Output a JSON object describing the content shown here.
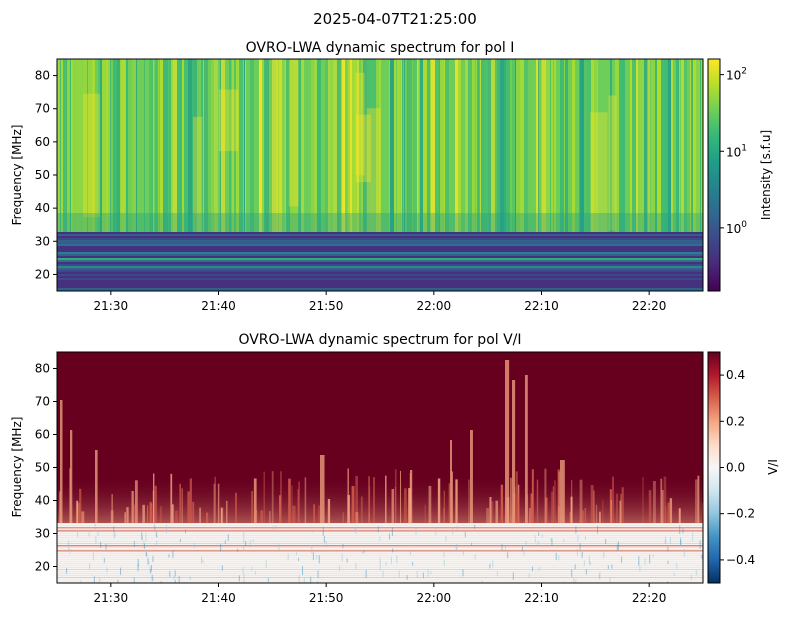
{
  "figure": {
    "suptitle": "2025-04-07T21:25:00"
  },
  "chart_data": [
    {
      "type": "heatmap",
      "title": "OVRO-LWA dynamic spectrum for pol I",
      "xlabel": "",
      "ylabel": "Frequency [MHz]",
      "xlim": [
        "21:25",
        "22:25"
      ],
      "ylim": [
        15,
        85
      ],
      "x_ticks": [
        "21:30",
        "21:40",
        "21:50",
        "22:00",
        "22:10",
        "22:20"
      ],
      "y_ticks": [
        20,
        30,
        40,
        50,
        60,
        70,
        80
      ],
      "colorbar": {
        "label": "Intensity [s.f.u]",
        "scale": "log",
        "colormap": "viridis",
        "ticks": [
          {
            "base": "10",
            "exp": "0",
            "value": 1
          },
          {
            "base": "10",
            "exp": "1",
            "value": 10
          },
          {
            "base": "10",
            "exp": "2",
            "value": 100
          }
        ],
        "range": [
          0.15,
          160
        ]
      },
      "bands": [
        {
          "freq_range": [
            15,
            33
          ],
          "description": "low intensity",
          "approx_value": 0.8
        },
        {
          "freq_range": [
            33,
            85
          ],
          "description": "high intensity",
          "approx_value": 30
        }
      ]
    },
    {
      "type": "heatmap",
      "title": "OVRO-LWA dynamic spectrum for pol V/I",
      "xlabel": "",
      "ylabel": "Frequency [MHz]",
      "xlim": [
        "21:25",
        "22:25"
      ],
      "ylim": [
        15,
        85
      ],
      "x_ticks": [
        "21:30",
        "21:40",
        "21:50",
        "22:00",
        "22:10",
        "22:20"
      ],
      "y_ticks": [
        20,
        30,
        40,
        50,
        60,
        70,
        80
      ],
      "colorbar": {
        "label": "V/I",
        "scale": "linear",
        "colormap": "RdBu_r",
        "ticks": [
          "−0.4",
          "−0.2",
          "0.0",
          "0.2",
          "0.4"
        ],
        "tick_values": [
          -0.4,
          -0.2,
          0.0,
          0.2,
          0.4
        ],
        "range": [
          -0.5,
          0.5
        ]
      },
      "bands": [
        {
          "freq_range": [
            15,
            33
          ],
          "description": "near zero",
          "approx_value": 0.0
        },
        {
          "freq_range": [
            33,
            85
          ],
          "description": "saturated positive",
          "approx_value": 0.5
        }
      ]
    }
  ],
  "colors": {
    "viridis": [
      "#440154",
      "#482878",
      "#3e4989",
      "#31688e",
      "#26828e",
      "#1f9e89",
      "#35b779",
      "#6ece58",
      "#b5de2b",
      "#fde725"
    ],
    "rdbu_r": [
      "#053061",
      "#2166ac",
      "#4393c3",
      "#92c5de",
      "#d1e5f0",
      "#f7f7f7",
      "#fddbc7",
      "#f4a582",
      "#d6604d",
      "#b2182b",
      "#67001f"
    ]
  }
}
